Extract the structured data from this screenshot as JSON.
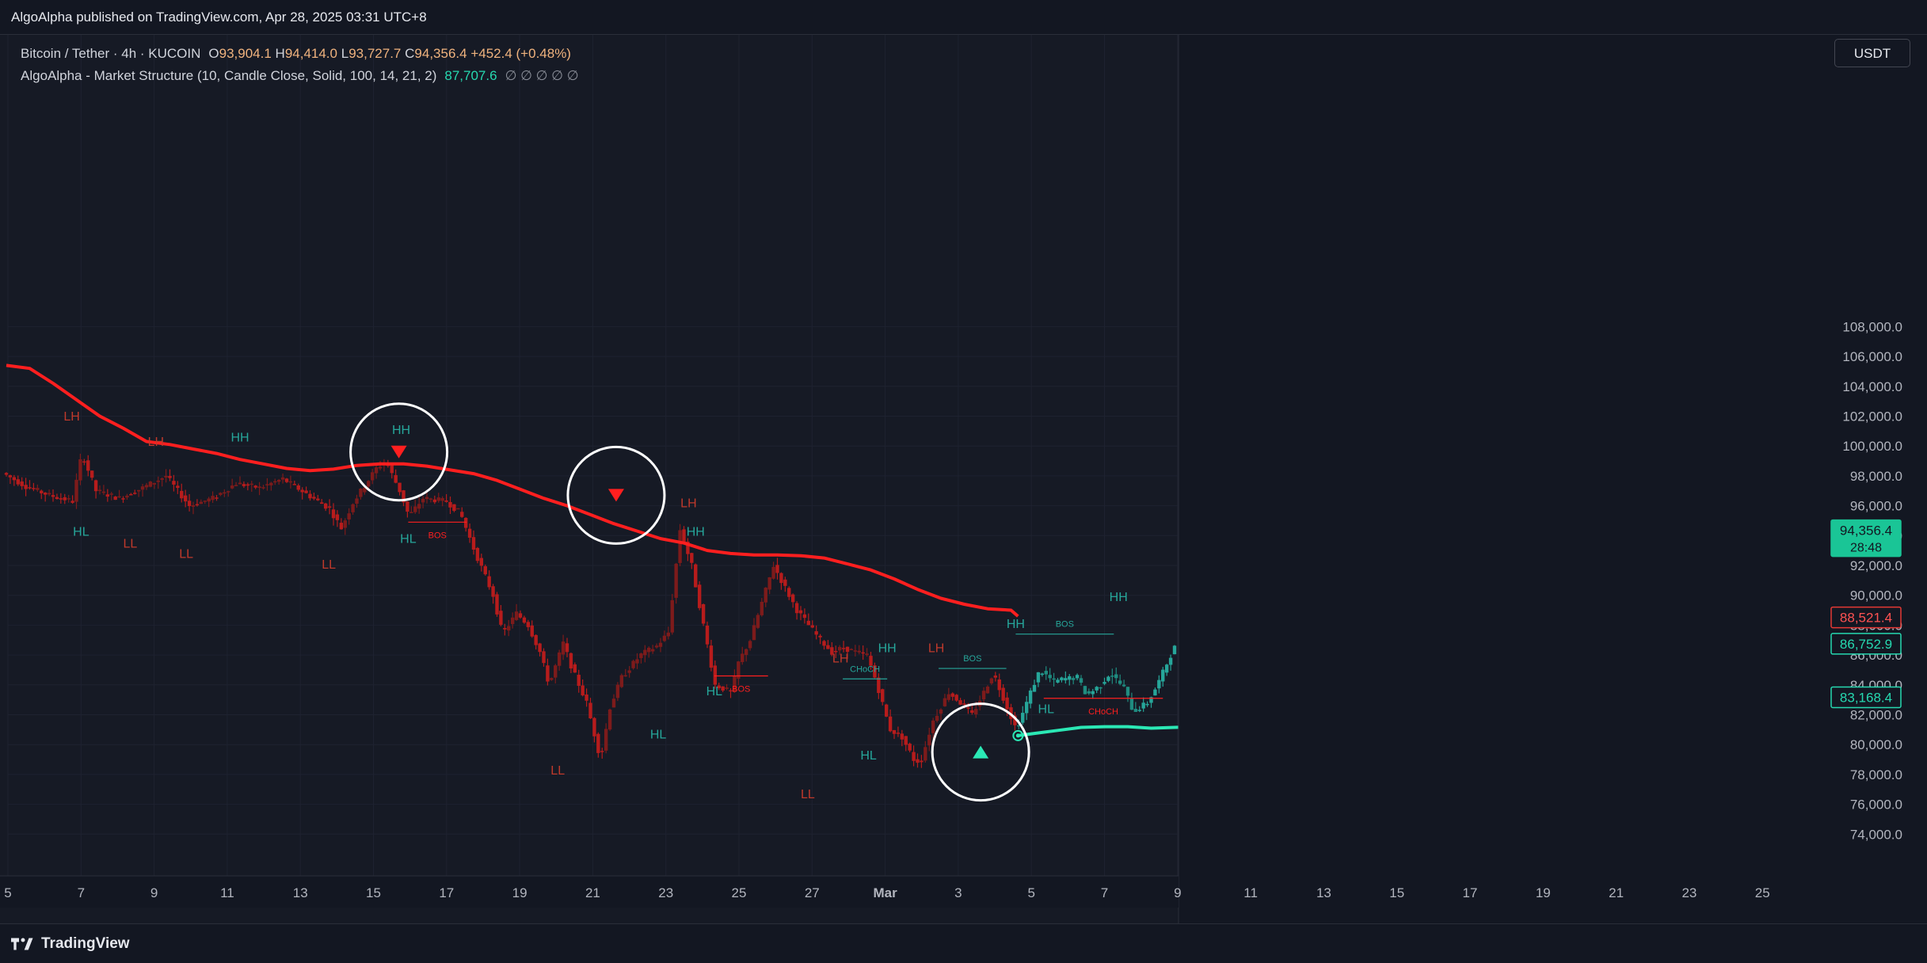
{
  "header": {
    "published": "AlgoAlpha published on TradingView.com, Apr 28, 2025 03:31 UTC+8"
  },
  "legend": {
    "symbol": "Bitcoin / Tether · 4h · KUCOIN",
    "open_k": "O",
    "open_v": "93,904.1",
    "high_k": "H",
    "high_v": "94,414.0",
    "low_k": "L",
    "low_v": "93,727.7",
    "close_k": "C",
    "close_v": "94,356.4",
    "change": "+452.4 (+0.48%)",
    "indicator_name": "AlgoAlpha - Market Structure (10, Candle Close, Solid, 100, 14, 21, 2)",
    "indicator_value": "87,707.6",
    "indicator_empty": "∅  ∅  ∅  ∅  ∅"
  },
  "toolbar": {
    "currency": "USDT"
  },
  "footer": {
    "brand": "TradingView"
  },
  "colors": {
    "bull": "#26a69a",
    "bear": "#b71c1c",
    "trend_bear": "#ff1f1f",
    "trend_bull": "#2be8b5",
    "background": "#161a25"
  },
  "chart_data": {
    "type": "candlestick",
    "symbol": "BTC/USDT",
    "timeframe": "4h",
    "ylim": [
      72000,
      109000
    ],
    "y_ticks": [
      "74,000.0",
      "76,000.0",
      "78,000.0",
      "80,000.0",
      "82,000.0",
      "84,000.0",
      "86,000.0",
      "88,000.0",
      "90,000.0",
      "92,000.0",
      "94,000.0",
      "96,000.0",
      "98,000.0",
      "100,000.0",
      "102,000.0",
      "104,000.0",
      "106,000.0",
      "108,000.0"
    ],
    "x_ticks": [
      "5",
      "7",
      "9",
      "11",
      "13",
      "15",
      "17",
      "19",
      "21",
      "23",
      "25",
      "27",
      "Mar",
      "3",
      "5",
      "7",
      "9",
      "11",
      "13",
      "15",
      "17",
      "19",
      "21",
      "23",
      "25"
    ],
    "xlim_days": [
      0,
      51.5
    ],
    "path": [
      [
        0,
        98200
      ],
      [
        1,
        97300
      ],
      [
        2,
        96700
      ],
      [
        3,
        96300
      ],
      [
        3.4,
        99500
      ],
      [
        4,
        97000
      ],
      [
        5,
        96500
      ],
      [
        6,
        97200
      ],
      [
        7,
        98000
      ],
      [
        8,
        96000
      ],
      [
        9,
        96500
      ],
      [
        10,
        97500
      ],
      [
        11,
        97200
      ],
      [
        12,
        97800
      ],
      [
        13,
        96800
      ],
      [
        14,
        95800
      ],
      [
        14.5,
        94500
      ],
      [
        15,
        96200
      ],
      [
        16,
        98500
      ],
      [
        16.4,
        99000
      ],
      [
        17,
        97000
      ],
      [
        17.4,
        95300
      ],
      [
        18,
        96500
      ],
      [
        19,
        96300
      ],
      [
        19.6,
        95500
      ],
      [
        20.2,
        93000
      ],
      [
        21,
        90000
      ],
      [
        21.4,
        87400
      ],
      [
        22,
        88800
      ],
      [
        22.5,
        88000
      ],
      [
        23,
        86200
      ],
      [
        23.4,
        84000
      ],
      [
        24,
        86800
      ],
      [
        24.4,
        85000
      ],
      [
        25,
        82800
      ],
      [
        25.6,
        79000
      ],
      [
        26,
        82500
      ],
      [
        26.5,
        84500
      ],
      [
        27.3,
        86000
      ],
      [
        28,
        86600
      ],
      [
        28.5,
        87500
      ],
      [
        29,
        94400
      ],
      [
        29.5,
        92000
      ],
      [
        30,
        88000
      ],
      [
        30.5,
        84000
      ],
      [
        31.2,
        83500
      ],
      [
        31.5,
        85500
      ],
      [
        32,
        87000
      ],
      [
        32.5,
        89500
      ],
      [
        33,
        92000
      ],
      [
        33.5,
        90500
      ],
      [
        34,
        89000
      ],
      [
        34.5,
        88000
      ],
      [
        35,
        87000
      ],
      [
        35.5,
        86200
      ],
      [
        36,
        86500
      ],
      [
        36.5,
        86200
      ],
      [
        37,
        86000
      ],
      [
        37.4,
        84200
      ],
      [
        37.8,
        82000
      ],
      [
        38,
        81000
      ],
      [
        38.5,
        80500
      ],
      [
        39,
        79000
      ],
      [
        39.3,
        78800
      ],
      [
        39.8,
        81500
      ],
      [
        40.5,
        83500
      ],
      [
        41,
        82800
      ],
      [
        41.5,
        82000
      ],
      [
        42,
        83500
      ],
      [
        42.4,
        84800
      ],
      [
        43,
        82500
      ],
      [
        43.4,
        81000
      ],
      [
        44,
        83500
      ],
      [
        44.4,
        85000
      ],
      [
        45,
        84200
      ],
      [
        45.4,
        84400
      ],
      [
        46,
        84500
      ],
      [
        46.4,
        83300
      ],
      [
        47,
        84000
      ],
      [
        47.4,
        84800
      ],
      [
        48,
        83800
      ],
      [
        48.4,
        82200
      ],
      [
        49,
        82800
      ],
      [
        49.4,
        83900
      ],
      [
        50,
        86000
      ],
      [
        50.4,
        87200
      ],
      [
        51,
        85800
      ],
      [
        51.5,
        84700
      ],
      [
        52,
        84100
      ],
      [
        52.5,
        84000
      ],
      [
        53,
        83800
      ],
      [
        53.4,
        84200
      ],
      [
        54,
        86000
      ],
      [
        54.4,
        87800
      ],
      [
        55,
        86600
      ],
      [
        55.5,
        87100
      ],
      [
        56,
        86200
      ],
      [
        56.8,
        86700
      ]
    ],
    "trend_bear_line": [
      [
        0,
        105400
      ],
      [
        1,
        105200
      ],
      [
        2,
        104200
      ],
      [
        3,
        103100
      ],
      [
        4,
        102000
      ],
      [
        5,
        101200
      ],
      [
        6,
        100300
      ],
      [
        7,
        100100
      ],
      [
        8,
        99800
      ],
      [
        9,
        99500
      ],
      [
        10,
        99100
      ],
      [
        11,
        98800
      ],
      [
        12,
        98500
      ],
      [
        13,
        98350
      ],
      [
        14,
        98450
      ],
      [
        15,
        98700
      ],
      [
        16,
        98800
      ],
      [
        17,
        98800
      ],
      [
        18,
        98650
      ],
      [
        19,
        98400
      ],
      [
        20,
        98150
      ],
      [
        21,
        97700
      ],
      [
        22,
        97100
      ],
      [
        23,
        96500
      ],
      [
        24,
        96000
      ],
      [
        25,
        95400
      ],
      [
        26,
        94800
      ],
      [
        27,
        94300
      ],
      [
        28,
        93800
      ],
      [
        29,
        93500
      ],
      [
        30,
        93000
      ],
      [
        31,
        92800
      ],
      [
        32,
        92700
      ],
      [
        33,
        92700
      ],
      [
        34,
        92650
      ],
      [
        35,
        92500
      ],
      [
        36,
        92100
      ],
      [
        37,
        91700
      ],
      [
        38,
        91100
      ],
      [
        39,
        90400
      ],
      [
        40,
        89800
      ],
      [
        41,
        89400
      ],
      [
        42,
        89100
      ],
      [
        43,
        89000
      ],
      [
        43.3,
        88600
      ]
    ],
    "trend_bull_line": [
      [
        43.3,
        80600
      ],
      [
        44,
        80750
      ],
      [
        45,
        80950
      ],
      [
        46,
        81150
      ],
      [
        47,
        81200
      ],
      [
        48,
        81200
      ],
      [
        49,
        81100
      ],
      [
        50,
        81150
      ],
      [
        51,
        81200
      ],
      [
        52,
        81200
      ],
      [
        53,
        81300
      ],
      [
        54,
        81600
      ],
      [
        55,
        82300
      ],
      [
        56,
        82900
      ],
      [
        56.8,
        83200
      ]
    ],
    "structure_labels": [
      {
        "t": "LH",
        "x": 2.8,
        "y": 101700,
        "c": "bear"
      },
      {
        "t": "HL",
        "x": 3.2,
        "y": 94000,
        "c": "bull"
      },
      {
        "t": "LH",
        "x": 6.4,
        "y": 100000,
        "c": "bear"
      },
      {
        "t": "LL",
        "x": 5.3,
        "y": 93200,
        "c": "bear"
      },
      {
        "t": "HH",
        "x": 10,
        "y": 100300,
        "c": "bull"
      },
      {
        "t": "LL",
        "x": 7.7,
        "y": 92500,
        "c": "bear"
      },
      {
        "t": "LL",
        "x": 13.8,
        "y": 91800,
        "c": "bear"
      },
      {
        "t": "HH",
        "x": 16.9,
        "y": 100800,
        "c": "bull"
      },
      {
        "t": "HL",
        "x": 17.2,
        "y": 93500,
        "c": "bull"
      },
      {
        "t": "LH",
        "x": 29.2,
        "y": 95900,
        "c": "bear"
      },
      {
        "t": "LL",
        "x": 23.6,
        "y": 78000,
        "c": "bear"
      },
      {
        "t": "HL",
        "x": 27.9,
        "y": 80400,
        "c": "bull"
      },
      {
        "t": "HH",
        "x": 29.5,
        "y": 94000,
        "c": "bull"
      },
      {
        "t": "HL",
        "x": 30.3,
        "y": 83300,
        "c": "bull"
      },
      {
        "t": "LL",
        "x": 34.3,
        "y": 76400,
        "c": "bear"
      },
      {
        "t": "LH",
        "x": 35.7,
        "y": 85500,
        "c": "bear"
      },
      {
        "t": "HH",
        "x": 37.7,
        "y": 86200,
        "c": "bull"
      },
      {
        "t": "HL",
        "x": 36.9,
        "y": 79000,
        "c": "bull"
      },
      {
        "t": "LH",
        "x": 39.8,
        "y": 86200,
        "c": "bear"
      },
      {
        "t": "HH",
        "x": 43.2,
        "y": 87800,
        "c": "bull"
      },
      {
        "t": "HL",
        "x": 44.5,
        "y": 82100,
        "c": "bull"
      },
      {
        "t": "HH",
        "x": 47.6,
        "y": 89600,
        "c": "bull"
      }
    ],
    "structure_lines": [
      {
        "x1": 17.2,
        "x2": 19.7,
        "y": 94900,
        "c": "bear",
        "label": "BOS"
      },
      {
        "x1": 30.3,
        "x2": 32.6,
        "y": 84600,
        "c": "bear",
        "label": "BOS"
      },
      {
        "x1": 35.8,
        "x2": 37.7,
        "y": 84400,
        "c": "bull",
        "label": "CHoCH"
      },
      {
        "x1": 39.9,
        "x2": 42.8,
        "y": 85100,
        "c": "bull",
        "label": "BOS"
      },
      {
        "x1": 43.2,
        "x2": 47.4,
        "y": 87400,
        "c": "bull",
        "label": "BOS"
      },
      {
        "x1": 44.4,
        "x2": 49.5,
        "y": 83100,
        "c": "bear",
        "label": "CHoCH"
      }
    ],
    "signal_circles": [
      {
        "x": 16.8,
        "y": 99600,
        "dir": "down"
      },
      {
        "x": 26.1,
        "y": 96700,
        "dir": "down"
      },
      {
        "x": 41.7,
        "y": 79500,
        "dir": "up"
      }
    ],
    "price_tags": [
      {
        "label": "94,356.4",
        "sub": "28:48",
        "y": 94356,
        "style": "current"
      },
      {
        "label": "88,521.4",
        "y": 88521,
        "style": "bear"
      },
      {
        "label": "86,752.9",
        "y": 86753,
        "style": "bull"
      },
      {
        "label": "83,168.4",
        "y": 83168,
        "style": "bull"
      }
    ]
  }
}
